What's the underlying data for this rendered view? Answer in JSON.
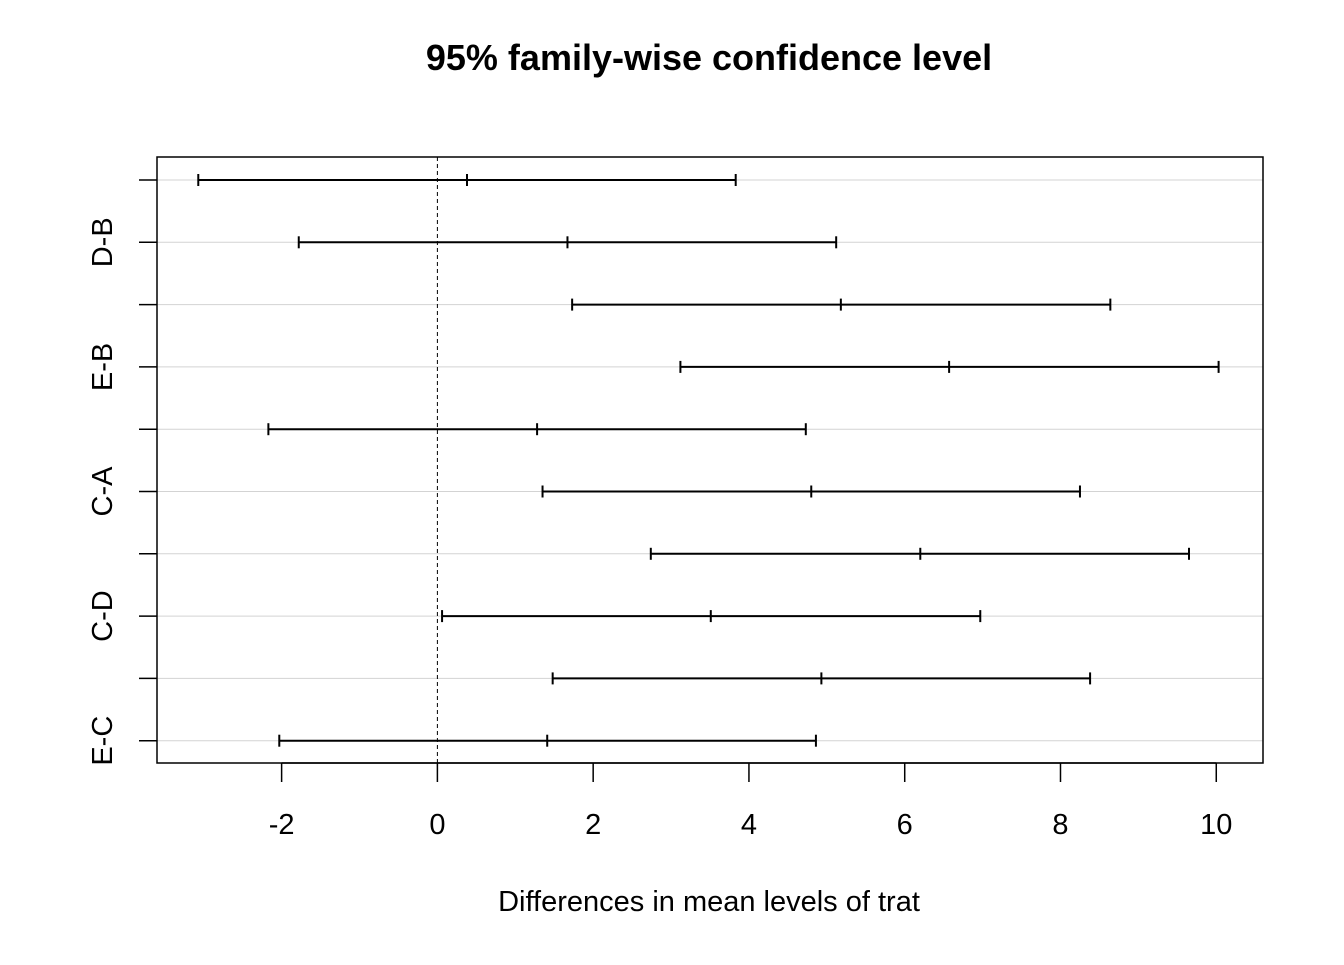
{
  "chart_data": {
    "type": "errorbar",
    "title": "95% family-wise confidence level",
    "xlabel": "Differences in mean levels of trat",
    "ylabel": "",
    "xlim": [
      -3.6,
      10.6
    ],
    "xticks": [
      -2,
      0,
      2,
      4,
      6,
      8,
      10
    ],
    "xtick_labels": [
      "-2",
      "0",
      "2",
      "4",
      "6",
      "8",
      "10"
    ],
    "reference_line_x": 0,
    "grid": "horizontal, light gray",
    "rows": [
      {
        "label": "",
        "lwr": -3.07,
        "estimate": 0.38,
        "upr": 3.83
      },
      {
        "label": "D-B",
        "lwr": -1.78,
        "estimate": 1.67,
        "upr": 5.12
      },
      {
        "label": "",
        "lwr": 1.73,
        "estimate": 5.18,
        "upr": 8.64
      },
      {
        "label": "E-B",
        "lwr": 3.12,
        "estimate": 6.57,
        "upr": 10.03
      },
      {
        "label": "",
        "lwr": -2.17,
        "estimate": 1.28,
        "upr": 4.73
      },
      {
        "label": "C-A",
        "lwr": 1.35,
        "estimate": 4.8,
        "upr": 8.25
      },
      {
        "label": "",
        "lwr": 2.74,
        "estimate": 6.2,
        "upr": 9.65
      },
      {
        "label": "C-D",
        "lwr": 0.06,
        "estimate": 3.51,
        "upr": 6.97
      },
      {
        "label": "",
        "lwr": 1.48,
        "estimate": 4.93,
        "upr": 8.38
      },
      {
        "label": "E-C",
        "lwr": -2.03,
        "estimate": 1.41,
        "upr": 4.86
      }
    ],
    "colors": {
      "bars": "#000000",
      "grid": "#d3d3d3",
      "reference_line": "#000000"
    }
  }
}
